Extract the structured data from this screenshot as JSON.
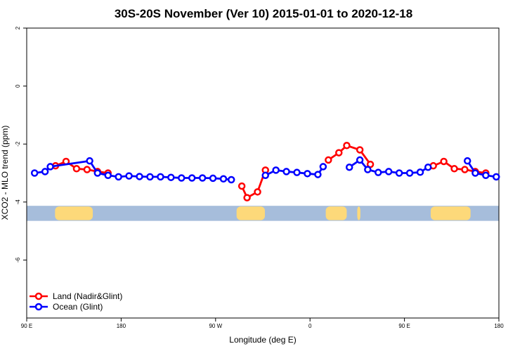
{
  "chart_data": {
    "type": "line",
    "title": "30S-20S November (Ver 10)   2015-01-01 to 2020-12-18",
    "xlabel": "Longitude (deg E)",
    "ylabel": "XCO2 - MLO trend (ppm)",
    "x_ticks": [
      {
        "value": 0,
        "label": "90 E"
      },
      {
        "value": 90,
        "label": "180"
      },
      {
        "value": 180,
        "label": "90 W"
      },
      {
        "value": 270,
        "label": "0"
      },
      {
        "value": 360,
        "label": "90 E"
      },
      {
        "value": 450,
        "label": "180"
      }
    ],
    "y_ticks": [
      {
        "value": 2,
        "label": "2"
      },
      {
        "value": 0,
        "label": "0"
      },
      {
        "value": -2,
        "label": "-2"
      },
      {
        "value": -4,
        "label": "-4"
      },
      {
        "value": -6,
        "label": "-6"
      }
    ],
    "xlim": [
      0,
      450
    ],
    "ylim": [
      -8,
      2
    ],
    "colors": {
      "land": "#ff0000",
      "ocean": "#0000ff",
      "ocean_band": "#a6bddb",
      "land_band": "#fdd97a"
    },
    "legend": {
      "position": "bottom-left"
    },
    "series": [
      {
        "name": "Land (Nadir&Glint)",
        "color": "#ff0000",
        "segments": [
          [
            [
              27.5,
              -2.75
            ],
            [
              37.5,
              -2.6
            ],
            [
              47.5,
              -2.85
            ],
            [
              57.5,
              -2.88
            ],
            [
              67.5,
              -2.95
            ],
            [
              77.5,
              -3.0
            ]
          ],
          [
            [
              205,
              -3.45
            ],
            [
              210,
              -3.85
            ],
            [
              220,
              -3.65
            ],
            [
              227.5,
              -2.9
            ]
          ],
          [
            [
              287.5,
              -2.55
            ],
            [
              297.5,
              -2.3
            ],
            [
              305,
              -2.05
            ],
            [
              317.5,
              -2.2
            ],
            [
              327.5,
              -2.7
            ]
          ],
          [
            [
              387.5,
              -2.75
            ],
            [
              397.5,
              -2.6
            ],
            [
              407.5,
              -2.85
            ],
            [
              417.5,
              -2.88
            ],
            [
              427.5,
              -2.95
            ],
            [
              437.5,
              -3.0
            ]
          ]
        ]
      },
      {
        "name": "Ocean (Glint)",
        "color": "#0000ff",
        "segments": [
          [
            [
              7.5,
              -3.0
            ],
            [
              17.5,
              -2.95
            ],
            [
              22.5,
              -2.78
            ],
            [
              60,
              -2.58
            ],
            [
              67.5,
              -3.0
            ],
            [
              77.5,
              -3.08
            ],
            [
              87.5,
              -3.13
            ],
            [
              97.5,
              -3.1
            ],
            [
              107.5,
              -3.12
            ],
            [
              117.5,
              -3.13
            ],
            [
              127.5,
              -3.13
            ],
            [
              137.5,
              -3.15
            ],
            [
              147.5,
              -3.17
            ],
            [
              157.5,
              -3.17
            ],
            [
              167.5,
              -3.17
            ],
            [
              177.5,
              -3.18
            ],
            [
              187.5,
              -3.2
            ],
            [
              195,
              -3.23
            ]
          ],
          [
            [
              227.5,
              -3.08
            ],
            [
              237.5,
              -2.9
            ],
            [
              247.5,
              -2.95
            ],
            [
              257.5,
              -2.98
            ],
            [
              267.5,
              -3.02
            ],
            [
              277.5,
              -3.05
            ],
            [
              282.5,
              -2.78
            ]
          ],
          [
            [
              307.5,
              -2.8
            ],
            [
              317.5,
              -2.55
            ],
            [
              325,
              -2.88
            ],
            [
              335,
              -2.98
            ],
            [
              345,
              -2.95
            ],
            [
              355,
              -3.0
            ],
            [
              365,
              -3.0
            ],
            [
              375,
              -2.97
            ],
            [
              382.5,
              -2.8
            ]
          ],
          [
            [
              420,
              -2.58
            ],
            [
              427.5,
              -3.0
            ],
            [
              437.5,
              -3.08
            ],
            [
              447.5,
              -3.13
            ]
          ]
        ]
      }
    ],
    "surface_band": {
      "y_range": [
        -4.65,
        -4.13
      ],
      "land_spans": [
        [
          27,
          63
        ],
        [
          200,
          227
        ],
        [
          285,
          305
        ],
        [
          315,
          318
        ],
        [
          385,
          423
        ]
      ]
    }
  }
}
